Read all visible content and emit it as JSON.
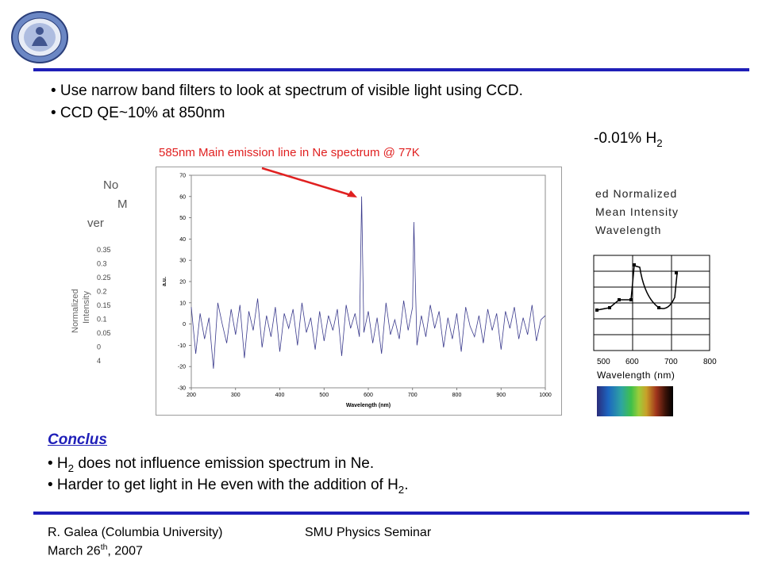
{
  "bullets": [
    "• Use narrow band filters to look at spectrum of visible light using CCD.",
    "• CCD QE~10% at 850nm"
  ],
  "partial_right_text": {
    "prefix": "-0.01% H",
    "sub": "2"
  },
  "annotation": "585nm Main emission line in Ne spectrum @ 77K",
  "background_chart_left": {
    "title_lines": [
      "No",
      "M",
      "ver"
    ],
    "ylabel_lines": [
      "Normalized",
      "Intensity"
    ],
    "yticks": [
      "0.35",
      "0.3",
      "0.25",
      "0.2",
      "0.15",
      "0.1",
      "0.05",
      "0",
      "4"
    ]
  },
  "background_chart_right": {
    "title_lines": [
      "ed Normalized",
      "Mean Intensity",
      "Wavelength"
    ],
    "xticks": [
      "500",
      "600",
      "700",
      "800"
    ],
    "xlabel": "Wavelength (nm)"
  },
  "conclusions": {
    "heading": "Conclus",
    "items": [
      {
        "pre": "• H",
        "sub": "2",
        "post": " does not influence emission spectrum in Ne."
      },
      {
        "pre": "• Harder to get light in He even with the addition of H",
        "sub": "2",
        "post": "."
      }
    ]
  },
  "footer": {
    "author": "R. Galea (Columbia University)",
    "event": "SMU Physics Seminar",
    "date_pre": "March 26",
    "date_sup": "th",
    "date_post": ", 2007"
  },
  "colors": {
    "rule": "#1f1fb8",
    "annotation": "#e02020",
    "spectrum_line": "#3a3a8c"
  },
  "chart_data": {
    "type": "line",
    "title": "",
    "xlabel": "Wavelength (nm)",
    "ylabel": "a.u.",
    "xlim": [
      200,
      1000
    ],
    "ylim": [
      -30,
      70
    ],
    "xticks": [
      200,
      300,
      400,
      500,
      600,
      700,
      800,
      900,
      1000
    ],
    "yticks": [
      -30,
      -20,
      -10,
      0,
      10,
      20,
      30,
      40,
      50,
      60,
      70
    ],
    "grid": false,
    "series": [
      {
        "x": [
          200,
          210,
          220,
          230,
          240,
          250,
          260,
          270,
          280,
          290,
          300,
          310,
          320,
          330,
          340,
          350,
          360,
          370,
          380,
          390,
          400,
          410,
          420,
          430,
          440,
          450,
          460,
          470,
          480,
          490,
          500,
          510,
          520,
          530,
          540,
          550,
          560,
          570,
          580,
          585,
          590,
          600,
          610,
          620,
          630,
          640,
          650,
          660,
          670,
          680,
          690,
          700,
          703,
          710,
          720,
          730,
          740,
          750,
          760,
          770,
          780,
          790,
          800,
          810,
          820,
          830,
          840,
          850,
          860,
          870,
          880,
          890,
          900,
          910,
          920,
          930,
          940,
          950,
          960,
          970,
          980,
          990,
          1000
        ],
        "values": [
          8,
          -14,
          5,
          -7,
          3,
          -21,
          10,
          0,
          -9,
          7,
          -5,
          9,
          -16,
          6,
          -3,
          12,
          -11,
          4,
          -6,
          8,
          -13,
          5,
          -2,
          7,
          -10,
          10,
          -4,
          3,
          -12,
          6,
          -8,
          4,
          -3,
          7,
          -15,
          9,
          -2,
          5,
          -6,
          60,
          -4,
          6,
          -9,
          3,
          -14,
          10,
          -5,
          2,
          -7,
          11,
          -3,
          8,
          48,
          -10,
          4,
          -6,
          9,
          -2,
          6,
          -11,
          3,
          -7,
          5,
          -13,
          8,
          -1,
          -6,
          4,
          -9,
          7,
          -3,
          5,
          -12,
          6,
          -2,
          8,
          -7,
          3,
          -5,
          9,
          -8,
          2,
          4
        ]
      }
    ]
  }
}
